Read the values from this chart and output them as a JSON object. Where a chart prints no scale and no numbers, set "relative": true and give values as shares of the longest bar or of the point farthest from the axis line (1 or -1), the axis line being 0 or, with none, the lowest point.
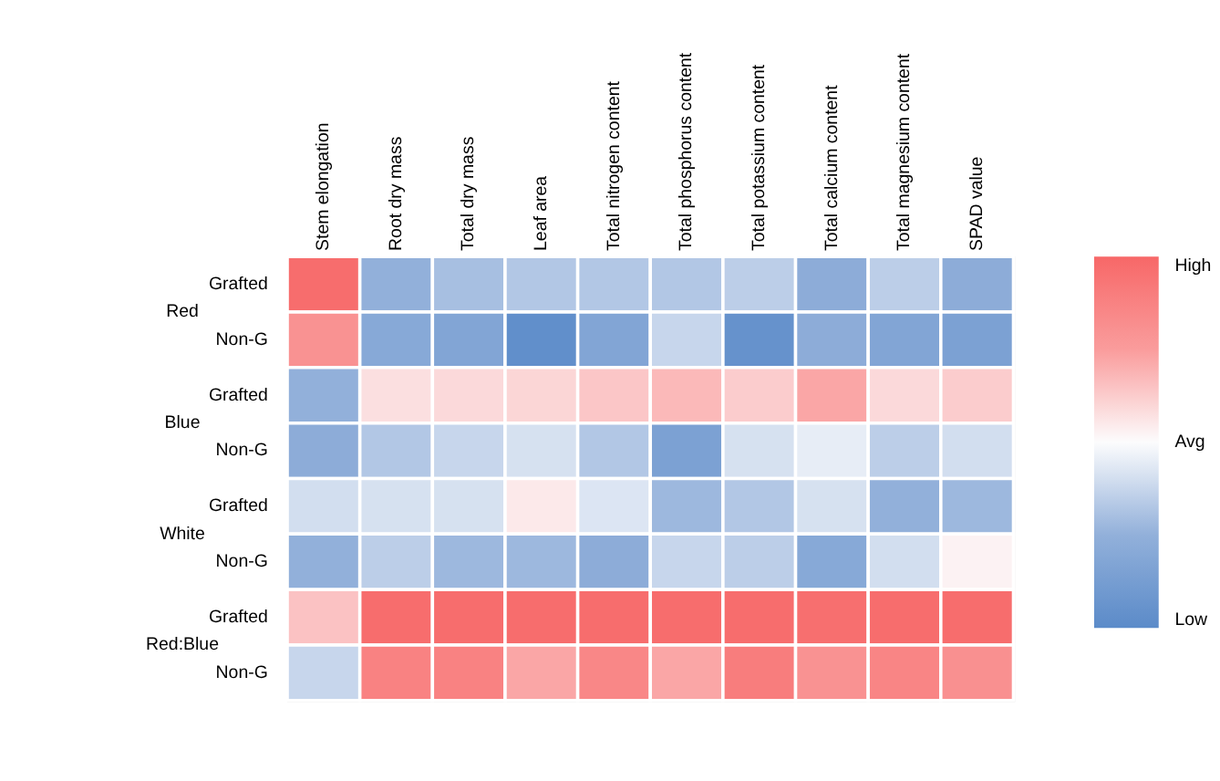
{
  "chart_data": {
    "type": "heatmap",
    "relative": true,
    "categories": [
      "Stem elongation",
      "Root dry mass",
      "Total dry mass",
      "Leaf area",
      "Total nitrogen content",
      "Total phosphorus content",
      "Total potassium content",
      "Total calcium content",
      "Total magnesium content",
      "SPAD value"
    ],
    "y_categories": [
      "Grafted",
      "Non-G",
      "Grafted",
      "Non-G",
      "Grafted",
      "Non-G",
      "Grafted",
      "Non-G"
    ],
    "y2_categories": [
      "Red",
      null,
      "Blue",
      null,
      "White",
      null,
      "Red:Blue",
      null
    ],
    "cells": [
      [
        0.95,
        -0.5,
        -0.4,
        -0.35,
        -0.35,
        -0.35,
        -0.3,
        -0.55,
        -0.3,
        -0.55
      ],
      [
        0.6,
        -0.6,
        -0.65,
        -0.95,
        -0.65,
        -0.25,
        -0.9,
        -0.55,
        -0.65,
        -0.7
      ],
      [
        -0.5,
        0.15,
        0.18,
        0.2,
        0.28,
        0.35,
        0.25,
        0.45,
        0.18,
        0.25
      ],
      [
        -0.55,
        -0.35,
        -0.25,
        -0.18,
        -0.35,
        -0.7,
        -0.18,
        -0.1,
        -0.3,
        -0.2
      ],
      [
        -0.2,
        -0.18,
        -0.18,
        0.1,
        -0.15,
        -0.45,
        -0.35,
        -0.18,
        -0.5,
        -0.45
      ],
      [
        -0.5,
        -0.3,
        -0.45,
        -0.45,
        -0.55,
        -0.25,
        -0.3,
        -0.6,
        -0.2,
        0.05
      ],
      [
        0.3,
        0.95,
        0.95,
        0.95,
        0.95,
        0.95,
        0.95,
        0.93,
        0.95,
        0.95
      ],
      [
        -0.25,
        0.75,
        0.75,
        0.45,
        0.7,
        0.45,
        0.8,
        0.6,
        0.72,
        0.62
      ]
    ],
    "clim": [
      -1,
      1
    ],
    "cticks": [
      {
        "value": 1,
        "label": "High"
      },
      {
        "value": 0,
        "label": "Avg"
      },
      {
        "value": -1,
        "label": "Low"
      }
    ],
    "colors": [
      "#5b8bc9",
      "#92b0da",
      "#fcfcfd",
      "#fa9c9c",
      "#f76868"
    ]
  }
}
